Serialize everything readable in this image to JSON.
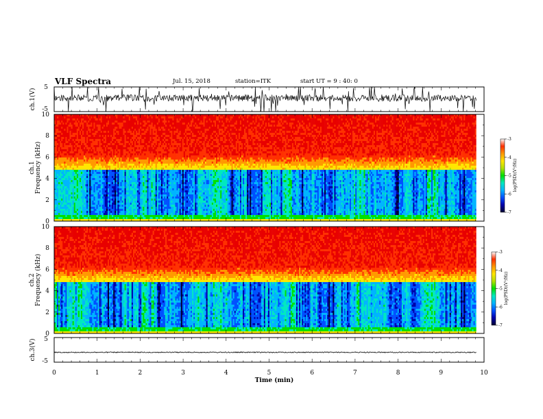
{
  "header": {
    "title": "VLF Spectra",
    "date": "Jul. 15, 2018",
    "station": "station=ITK",
    "start_ut": "start UT =  9 : 40: 0"
  },
  "colors": {
    "spectrum": [
      "#000033",
      "#0000aa",
      "#0050ff",
      "#00b4ff",
      "#00e8c0",
      "#00e000",
      "#b4e000",
      "#ffe600",
      "#ff9900",
      "#ff3000",
      "#e80000"
    ]
  },
  "chart_data": [
    {
      "type": "line",
      "name": "waveform-ch1",
      "ylabel": "ch.1(V)",
      "ylim": [
        -5,
        5
      ],
      "yticks": [
        "5",
        "-5"
      ],
      "xlim": [
        0,
        10
      ],
      "baseline": 0.5,
      "noise": "high"
    },
    {
      "type": "heatmap",
      "name": "spectrogram-ch1",
      "ylabel": "Frequency (kHz)",
      "channel_label": "ch.1",
      "ylim": [
        0,
        10
      ],
      "yticks": [
        "0",
        "2",
        "4",
        "6",
        "8",
        "10"
      ],
      "xlim": [
        0,
        9.82
      ],
      "colorbar": {
        "label": "log(PSD)(V²/Hz)",
        "range": [
          -7,
          -3
        ],
        "ticks": [
          "-3",
          "-4",
          "-5",
          "-6",
          "-7"
        ]
      }
    },
    {
      "type": "heatmap",
      "name": "spectrogram-ch2",
      "ylabel": "Frequency (kHz)",
      "channel_label": "ch.2",
      "ylim": [
        0,
        10
      ],
      "yticks": [
        "0",
        "2",
        "4",
        "6",
        "8",
        "10"
      ],
      "xlim": [
        0,
        9.82
      ],
      "colorbar": {
        "label": "log(PSD)(V²/Hz)",
        "range": [
          -7,
          -3
        ],
        "ticks": [
          "-3",
          "-4",
          "-5",
          "-6",
          "-7"
        ]
      }
    },
    {
      "type": "line",
      "name": "waveform-ch3",
      "ylabel": "ch.3(V)",
      "ylim": [
        -5,
        5
      ],
      "yticks": [
        "5",
        "-5"
      ],
      "xlim": [
        0,
        10
      ],
      "baseline": -1.0,
      "noise": "low"
    }
  ],
  "xaxis": {
    "label": "Time (min)",
    "range": [
      0,
      10
    ],
    "ticks": [
      "0",
      "1",
      "2",
      "3",
      "4",
      "5",
      "6",
      "7",
      "8",
      "9",
      "10"
    ]
  }
}
